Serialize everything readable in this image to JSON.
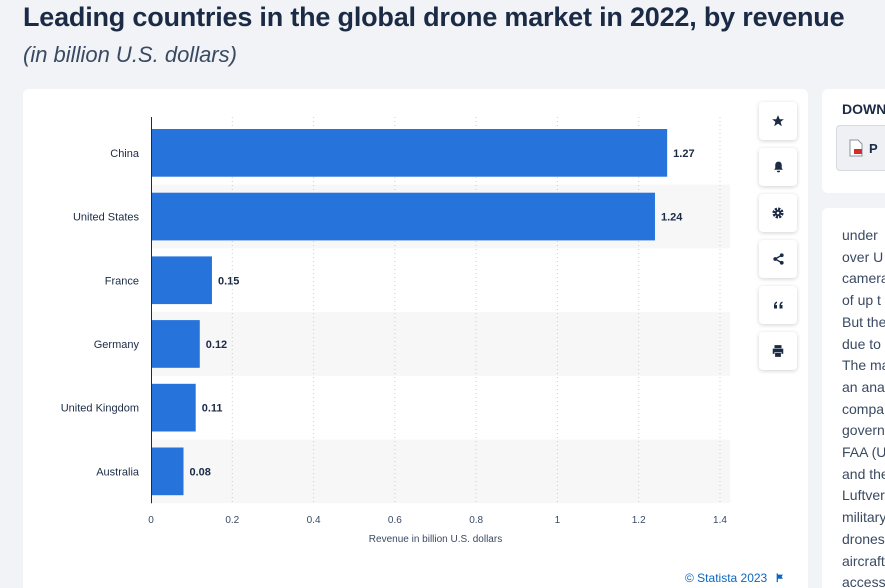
{
  "header": {
    "title": "Leading countries in the global drone market in 2022, by revenue",
    "subtitle": "(in billion U.S. dollars)"
  },
  "chart_data": {
    "type": "bar",
    "orientation": "horizontal",
    "categories": [
      "China",
      "United States",
      "France",
      "Germany",
      "United Kingdom",
      "Australia"
    ],
    "values": [
      1.27,
      1.24,
      0.15,
      0.12,
      0.11,
      0.08
    ],
    "value_labels": [
      "1.27",
      "1.24",
      "0.15",
      "0.12",
      "0.11",
      "0.08"
    ],
    "xlabel": "Revenue in billion U.S. dollars",
    "ylabel": "",
    "xlim": [
      0,
      1.4
    ],
    "xticks": [
      0,
      0.2,
      0.4,
      0.6,
      0.8,
      1,
      1.2,
      1.4
    ],
    "xtick_labels": [
      "0",
      "0.2",
      "0.4",
      "0.6",
      "0.8",
      "1",
      "1.2",
      "1.4"
    ],
    "grid": "vertical dotted",
    "bar_color": "#2773dc",
    "alternate_row_color": "#f7f7f8"
  },
  "credit": "© Statista 2023",
  "toolbar": {
    "icons": [
      "star-icon",
      "bell-icon",
      "gear-icon",
      "share-icon",
      "quote-icon",
      "print-icon"
    ]
  },
  "download": {
    "title": "DOWN",
    "pdf_label": "P"
  },
  "description": {
    "lines": [
      "under",
      "over U",
      "camera",
      "of up t",
      "But the",
      "due to",
      "The ma",
      "an ana",
      "compa",
      "govern",
      "FAA (U",
      "and the",
      "Luftver",
      "military",
      "drones",
      "aircraft",
      "access"
    ]
  }
}
